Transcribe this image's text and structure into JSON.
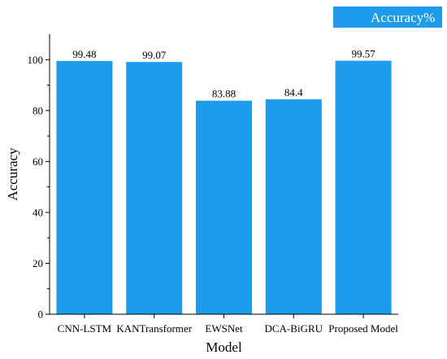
{
  "chart_data": {
    "type": "bar",
    "title": "",
    "xlabel": "Model",
    "ylabel": "Accuracy",
    "categories": [
      "CNN-LSTM",
      "KANTransformer",
      "EWSNet",
      "DCA-BiGRU",
      "Proposed Model"
    ],
    "series": [
      {
        "name": "Accuracy%",
        "values": [
          99.48,
          99.07,
          83.88,
          84.4,
          99.57
        ],
        "value_labels": [
          "99.48",
          "99.07",
          "83.88",
          "84.4",
          "99.57"
        ],
        "color": "#1E9BEB"
      }
    ],
    "ylim": [
      0,
      110
    ],
    "yticks": [
      0,
      20,
      40,
      60,
      80,
      100
    ],
    "grid": false,
    "legend": "top-right"
  }
}
